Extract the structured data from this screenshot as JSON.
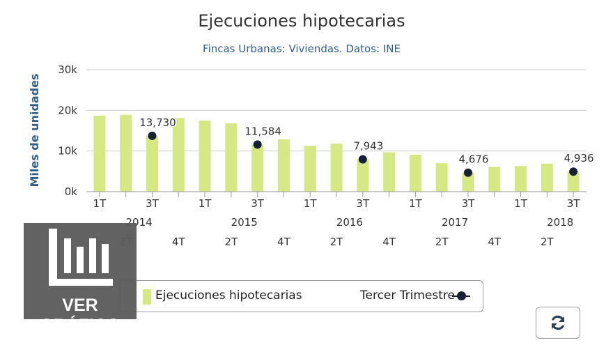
{
  "chart_data": {
    "type": "bar",
    "title": "Ejecuciones hipotecarias",
    "subtitle": "Fincas Urbanas: Viviendas. Datos: INE",
    "ylabel": "Miles de unidades",
    "ylim": [
      0,
      30000
    ],
    "yticks": [
      "0k",
      "10k",
      "20k",
      "30k"
    ],
    "grid": true,
    "legend_position": "bottom",
    "categories": [
      "1T",
      "2T",
      "3T",
      "4T",
      "1T",
      "2T",
      "3T",
      "4T",
      "1T",
      "2T",
      "3T",
      "4T",
      "1T",
      "2T",
      "3T",
      "4T",
      "1T",
      "2T",
      "3T"
    ],
    "years": [
      {
        "label": "2014",
        "start": 0
      },
      {
        "label": "2015",
        "start": 4
      },
      {
        "label": "2016",
        "start": 8
      },
      {
        "label": "2017",
        "start": 12
      },
      {
        "label": "2018",
        "start": 16
      }
    ],
    "series": [
      {
        "name": "Ejecuciones hipotecarias",
        "type": "bar",
        "color": "#d5e884",
        "values": [
          18700,
          18900,
          13730,
          18100,
          17500,
          16800,
          11584,
          12900,
          11300,
          11800,
          7943,
          9700,
          9100,
          7000,
          4676,
          6100,
          6300,
          6900,
          4936
        ]
      },
      {
        "name": "Tercer Trimestre",
        "type": "scatter",
        "color": "#1a2033",
        "points": [
          {
            "index": 2,
            "value": 13730,
            "label": "13,730"
          },
          {
            "index": 6,
            "value": 11584,
            "label": "11,584"
          },
          {
            "index": 10,
            "value": 7943,
            "label": "7,943"
          },
          {
            "index": 14,
            "value": 4676,
            "label": "4,676"
          },
          {
            "index": 18,
            "value": 4936,
            "label": "4,936"
          }
        ]
      }
    ]
  },
  "legend": {
    "bar_label": "Ejecuciones hipotecarias",
    "dot_label": "Tercer Trimestre"
  },
  "overlay": {
    "label": "VER GRÁFICO",
    "icon": "bar-chart-icon"
  },
  "refresh": {
    "icon": "refresh-icon"
  }
}
